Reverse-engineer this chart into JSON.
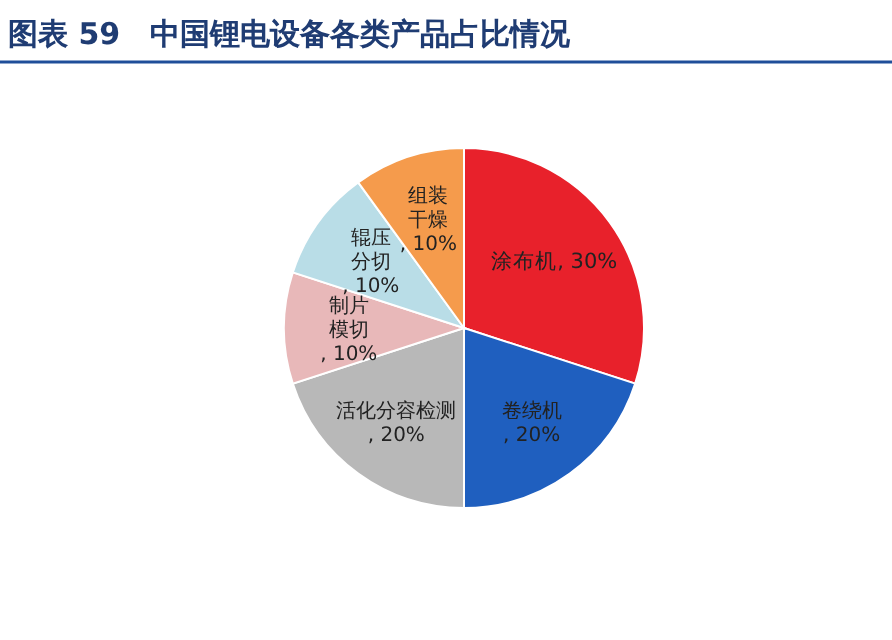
{
  "chart_data": {
    "type": "pie",
    "title": "图表 59　中国锂电设备各类产品占比情况",
    "categories": [
      "涂布机",
      "卷绕机",
      "活化分容检测",
      "制片模切",
      "辊压分切",
      "组装干燥"
    ],
    "values": [
      30,
      20,
      20,
      10,
      10,
      10
    ],
    "colors": [
      "#e8212b",
      "#1f5fbf",
      "#b8b8b8",
      "#e8b8b9",
      "#b9dde7",
      "#f59b4c"
    ],
    "value_labels": [
      ", 30%",
      ", 20%",
      ", 20%",
      ", 10%",
      ", 10%",
      ", 10%"
    ]
  }
}
